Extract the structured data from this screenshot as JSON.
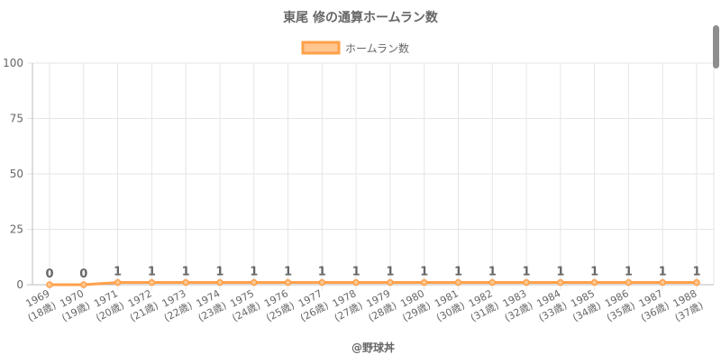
{
  "chart_data": {
    "type": "line",
    "title": "東尾 修の通算ホームラン数",
    "categories": [
      [
        "1969",
        "(18歳)"
      ],
      [
        "1970",
        "(19歳)"
      ],
      [
        "1971",
        "(20歳)"
      ],
      [
        "1972",
        "(21歳)"
      ],
      [
        "1973",
        "(22歳)"
      ],
      [
        "1974",
        "(23歳)"
      ],
      [
        "1975",
        "(24歳)"
      ],
      [
        "1976",
        "(25歳)"
      ],
      [
        "1977",
        "(26歳)"
      ],
      [
        "1978",
        "(27歳)"
      ],
      [
        "1979",
        "(28歳)"
      ],
      [
        "1980",
        "(29歳)"
      ],
      [
        "1981",
        "(30歳)"
      ],
      [
        "1982",
        "(31歳)"
      ],
      [
        "1983",
        "(32歳)"
      ],
      [
        "1984",
        "(33歳)"
      ],
      [
        "1985",
        "(34歳)"
      ],
      [
        "1986",
        "(35歳)"
      ],
      [
        "1987",
        "(36歳)"
      ],
      [
        "1988",
        "(37歳)"
      ]
    ],
    "series": [
      {
        "name": "ホームラン数",
        "values": [
          0,
          0,
          1,
          1,
          1,
          1,
          1,
          1,
          1,
          1,
          1,
          1,
          1,
          1,
          1,
          1,
          1,
          1,
          1,
          1
        ],
        "color": "#ffa04a",
        "fill": "#ffc68f"
      }
    ],
    "ylim": [
      0,
      100
    ],
    "yticks": [
      0,
      25,
      50,
      75,
      100
    ],
    "grid": true,
    "legend": "top-center",
    "footer": "@野球丼"
  }
}
